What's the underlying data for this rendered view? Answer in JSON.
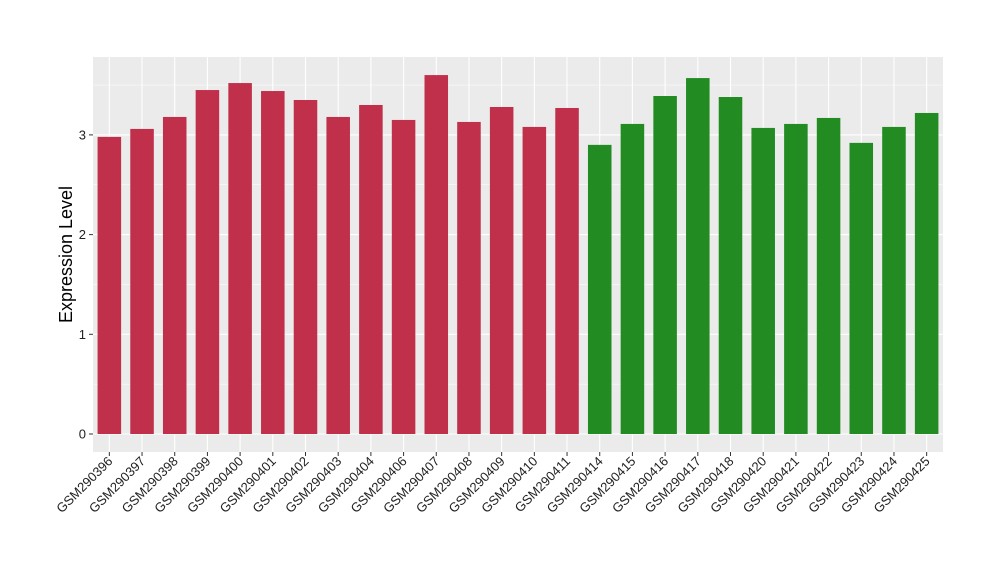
{
  "chart_data": {
    "type": "bar",
    "ylabel": "Expression Level",
    "xlabel": "",
    "title": "",
    "ylim": [
      0,
      3.8
    ],
    "yticks": [
      0,
      1,
      2,
      3
    ],
    "grid": true,
    "categories": [
      "GSM290396",
      "GSM290397",
      "GSM290398",
      "GSM290399",
      "GSM290400",
      "GSM290401",
      "GSM290402",
      "GSM290403",
      "GSM290404",
      "GSM290406",
      "GSM290407",
      "GSM290408",
      "GSM290409",
      "GSM290410",
      "GSM290411",
      "GSM290414",
      "GSM290415",
      "GSM290416",
      "GSM290417",
      "GSM290418",
      "GSM290420",
      "GSM290421",
      "GSM290422",
      "GSM290423",
      "GSM290424",
      "GSM290425"
    ],
    "values": [
      2.98,
      3.06,
      3.18,
      3.45,
      3.52,
      3.44,
      3.35,
      3.18,
      3.3,
      3.15,
      3.6,
      3.13,
      3.28,
      3.08,
      3.27,
      2.9,
      3.11,
      3.39,
      3.57,
      3.38,
      3.07,
      3.11,
      3.17,
      2.92,
      3.08,
      3.22
    ],
    "group_colors": [
      "#C0304A",
      "#C0304A",
      "#C0304A",
      "#C0304A",
      "#C0304A",
      "#C0304A",
      "#C0304A",
      "#C0304A",
      "#C0304A",
      "#C0304A",
      "#C0304A",
      "#C0304A",
      "#C0304A",
      "#C0304A",
      "#C0304A",
      "#228B22",
      "#228B22",
      "#228B22",
      "#228B22",
      "#228B22",
      "#228B22",
      "#228B22",
      "#228B22",
      "#228B22",
      "#228B22",
      "#228B22"
    ],
    "panel_background": "#EBEBEB",
    "grid_color": "#FFFFFF"
  }
}
